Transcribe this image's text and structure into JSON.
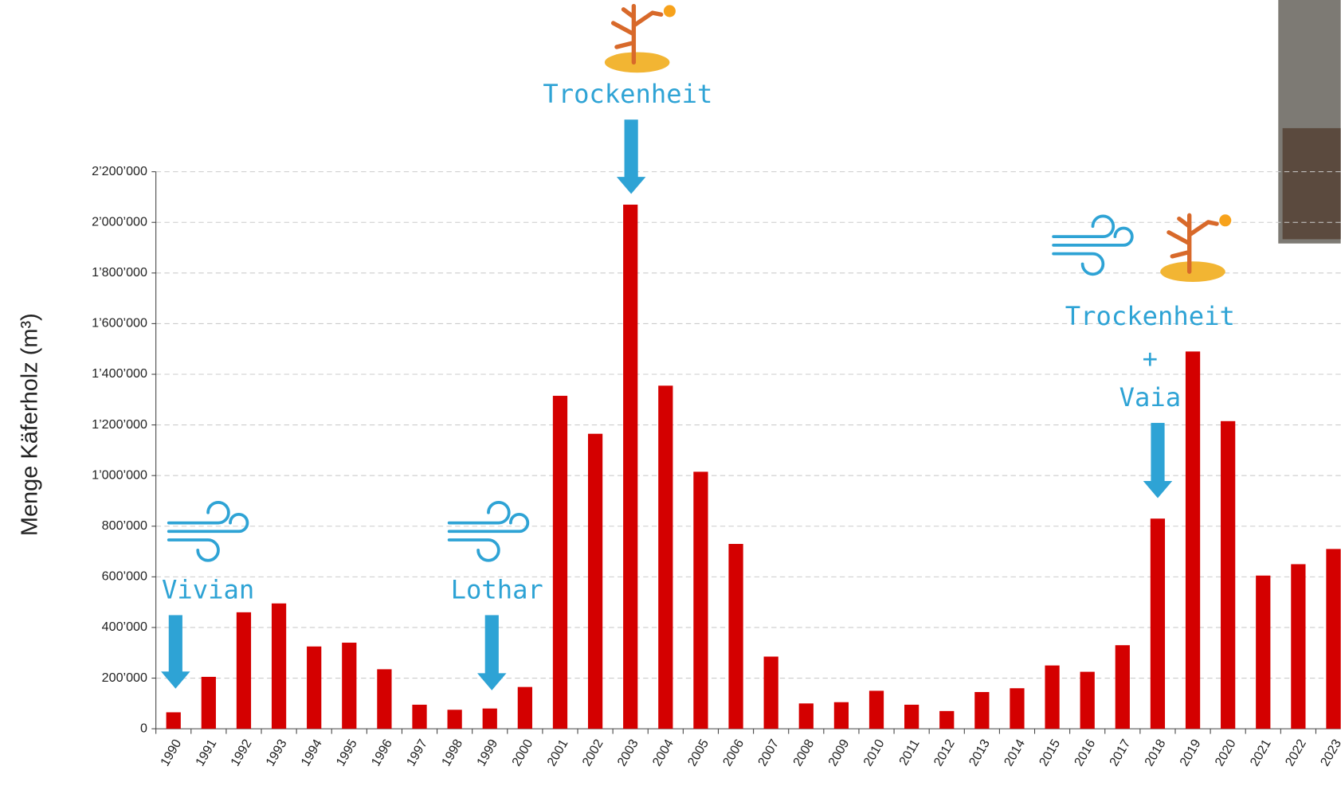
{
  "chart_data": {
    "type": "bar",
    "y_axis_label": "Menge Käferholz (m³)",
    "categories": [
      "1990",
      "1991",
      "1992",
      "1993",
      "1994",
      "1995",
      "1996",
      "1997",
      "1998",
      "1999",
      "2000",
      "2001",
      "2002",
      "2003",
      "2004",
      "2005",
      "2006",
      "2007",
      "2008",
      "2009",
      "2010",
      "2011",
      "2012",
      "2013",
      "2014",
      "2015",
      "2016",
      "2017",
      "2018",
      "2019",
      "2020",
      "2021",
      "2022",
      "2023"
    ],
    "values": [
      65000,
      205000,
      460000,
      495000,
      325000,
      340000,
      235000,
      95000,
      75000,
      80000,
      165000,
      1315000,
      1165000,
      2070000,
      1355000,
      1015000,
      730000,
      285000,
      100000,
      105000,
      150000,
      95000,
      70000,
      145000,
      160000,
      250000,
      225000,
      330000,
      830000,
      1490000,
      1215000,
      605000,
      650000,
      710000
    ],
    "color": "#d40000",
    "ylim": [
      0,
      2200000
    ],
    "yticks": [
      0,
      {
        "value": 200000,
        "label": "200’000"
      },
      {
        "value": 400000,
        "label": "400’000"
      },
      {
        "value": 600000,
        "label": "600’000"
      },
      {
        "value": 800000,
        "label": "800’000"
      },
      {
        "value": 1000000,
        "label": "1’000’000"
      },
      {
        "value": 1200000,
        "label": "1’200’000"
      },
      {
        "value": 1400000,
        "label": "1’400’000"
      },
      {
        "value": 1600000,
        "label": "1’600’000"
      },
      {
        "value": 1800000,
        "label": "1’800’000"
      },
      {
        "value": 2000000,
        "label": "2’000’000"
      },
      {
        "value": 2200000,
        "label": "2’200’000"
      }
    ],
    "grid": true,
    "annotations": [
      {
        "lines": [
          "Vivian"
        ]
      },
      {
        "lines": [
          "Lothar"
        ]
      },
      {
        "lines": [
          "Trockenheit"
        ]
      },
      {
        "lines": [
          "Trockenheit",
          "+",
          "Vaia"
        ]
      }
    ]
  }
}
